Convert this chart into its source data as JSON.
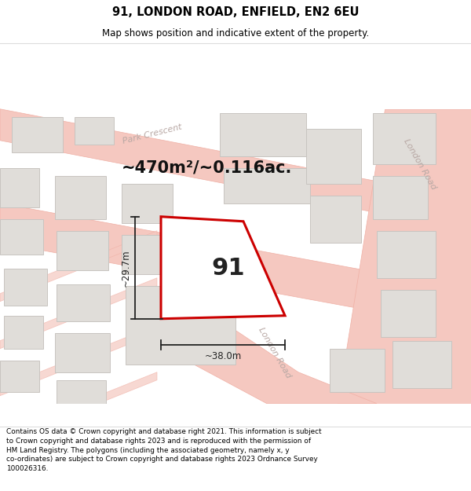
{
  "title_line1": "91, LONDON ROAD, ENFIELD, EN2 6EU",
  "title_line2": "Map shows position and indicative extent of the property.",
  "area_text": "~470m²/~0.116ac.",
  "plot_number": "91",
  "dim_width": "~38.0m",
  "dim_height": "~29.7m",
  "footer_text": "Contains OS data © Crown copyright and database right 2021. This information is subject to Crown copyright and database rights 2023 and is reproduced with the permission of HM Land Registry. The polygons (including the associated geometry, namely x, y co-ordinates) are subject to Crown copyright and database rights 2023 Ordnance Survey 100026316.",
  "map_bg": "#f7f6f4",
  "road_fill": "#f5c8c0",
  "road_line": "#f0b0a5",
  "bld_fill": "#e0ddd9",
  "bld_edge": "#c8c4c0",
  "plot_edge": "#cc0000",
  "plot_fill": "#ffffff",
  "label_color": "#b8a8a4",
  "dim_color": "#222222",
  "title_bg": "#ffffff",
  "footer_bg": "#ffffff",
  "sep_color": "#dddddd"
}
